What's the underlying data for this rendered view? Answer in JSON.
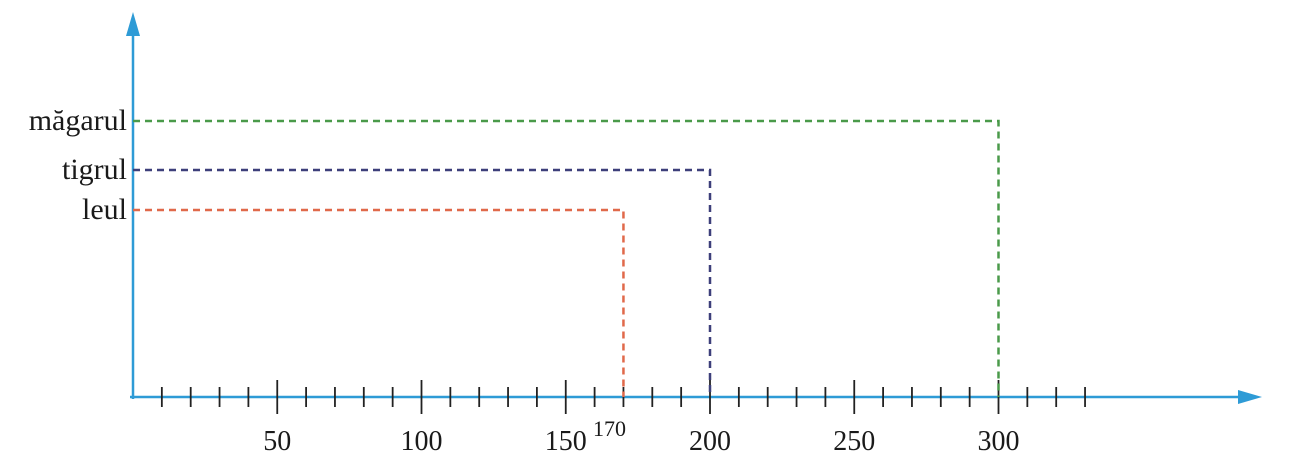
{
  "chart_data": {
    "type": "bar",
    "orientation": "horizontal",
    "style": "dashed-outline",
    "categories": [
      "măgarul",
      "tigrul",
      "leul"
    ],
    "values": [
      300,
      200,
      170
    ],
    "colors": [
      "#4a9a4a",
      "#3d3f7a",
      "#e0694a"
    ],
    "x_tick_labels": [
      {
        "value": 50,
        "text": "50"
      },
      {
        "value": 100,
        "text": "100"
      },
      {
        "value": 150,
        "text": "150"
      },
      {
        "value": 200,
        "text": "200"
      },
      {
        "value": 250,
        "text": "250"
      },
      {
        "value": 300,
        "text": "300"
      }
    ],
    "annotations": [
      {
        "value": 170,
        "text": "170"
      }
    ],
    "xlim": [
      0,
      340
    ],
    "minor_tick_step": 10,
    "major_tick_step": 50,
    "grid": false,
    "axis_color": "#2e9bd6"
  }
}
